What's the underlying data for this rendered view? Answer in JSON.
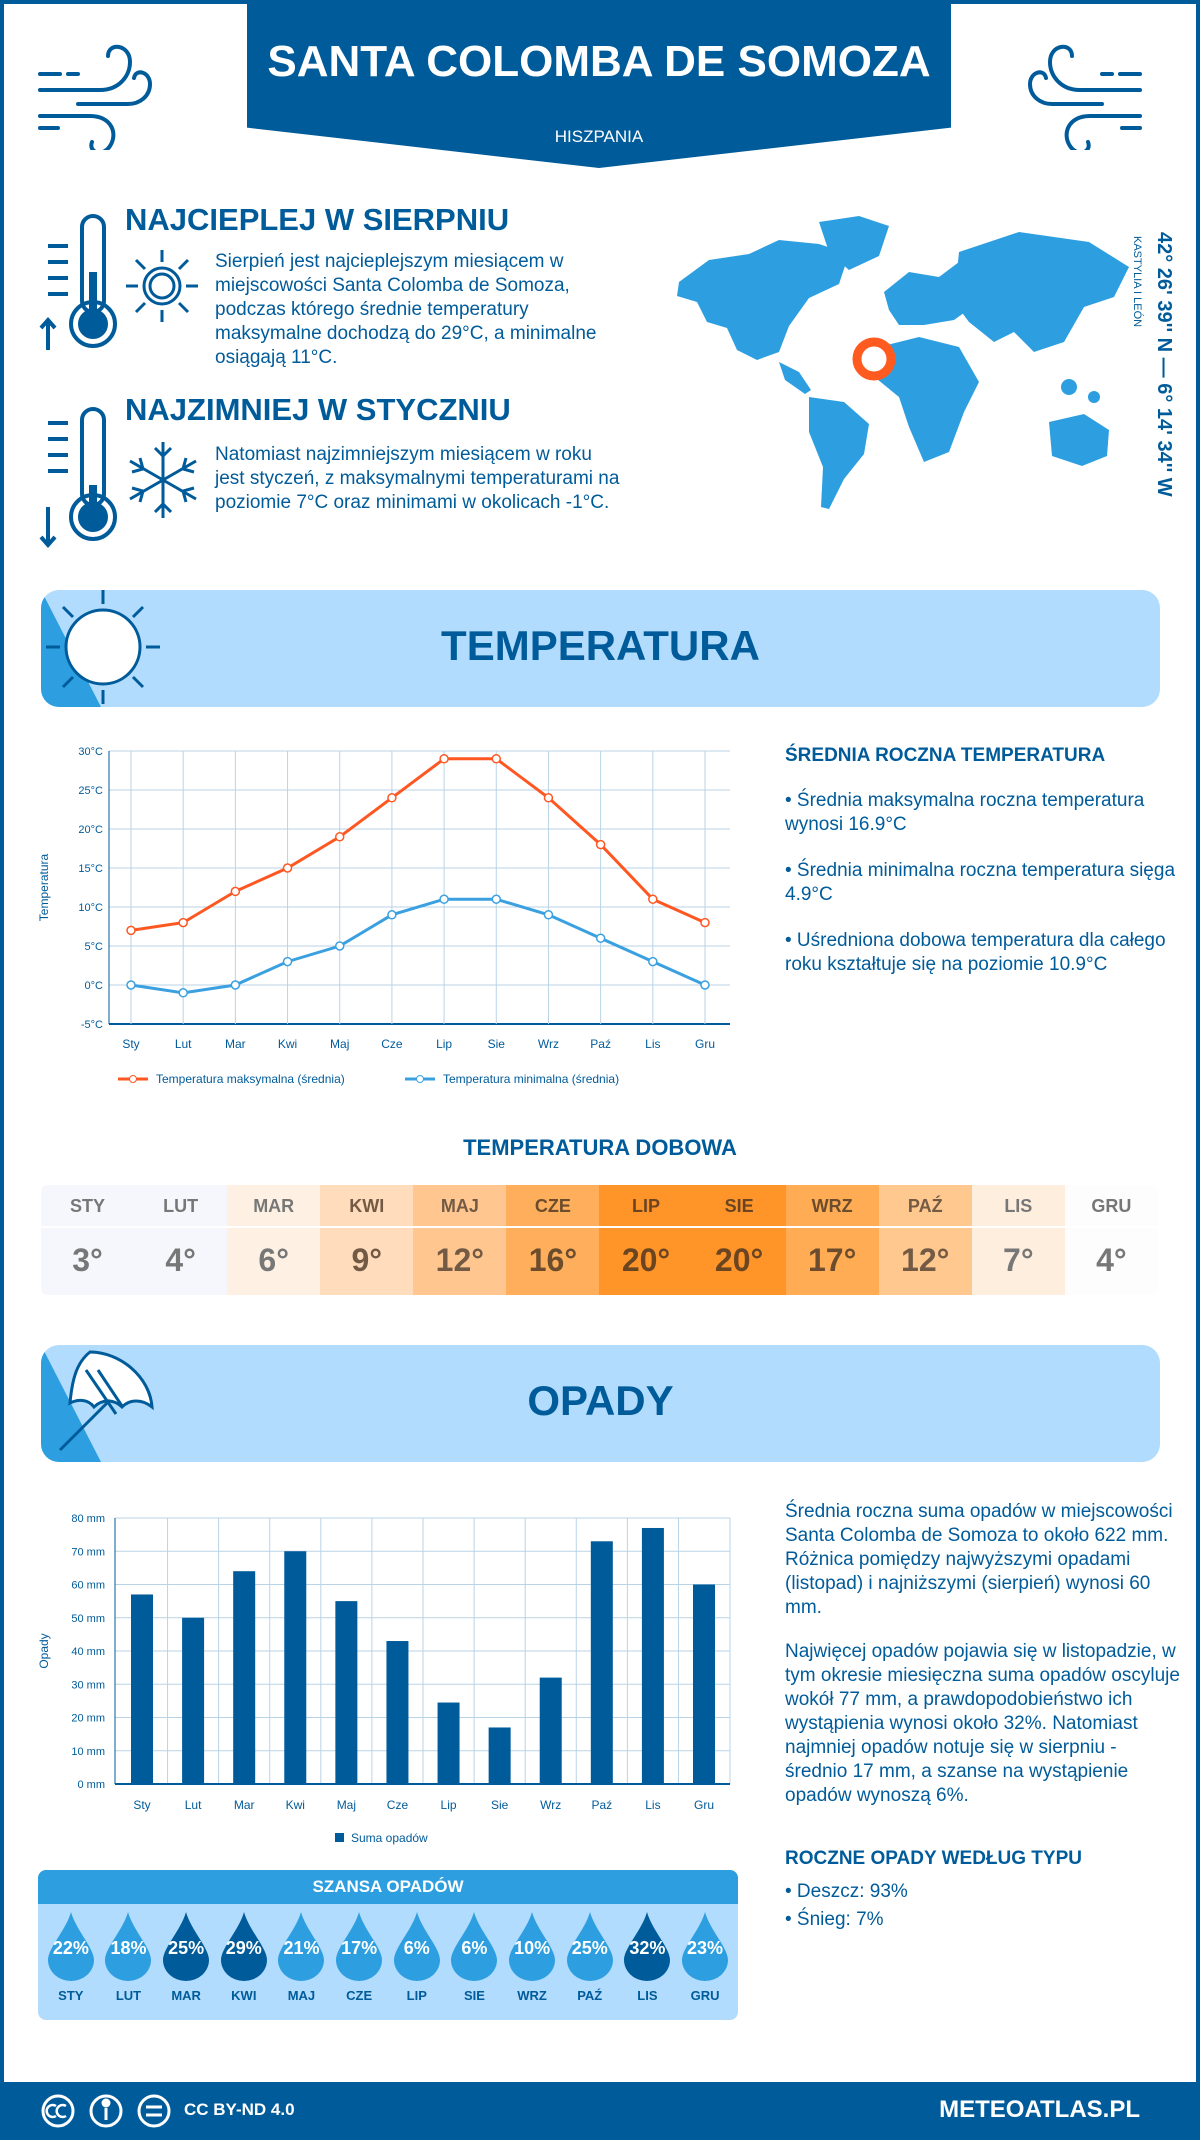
{
  "header": {
    "title": "SANTA COLOMBA DE SOMOZA",
    "country": "HISZPANIA"
  },
  "warmest": {
    "heading": "NAJCIEPLEJ W SIERPNIU",
    "text": "Sierpień jest najcieplejszym miesiącem w miejscowości Santa Colomba de Somoza, podczas którego średnie temperatury maksymalne dochodzą do 29°C, a minimalne osiągają 11°C."
  },
  "coldest": {
    "heading": "NAJZIMNIEJ W STYCZNIU",
    "text": "Natomiast najzimniejszym miesiącem w roku jest styczeń, z maksymalnymi temperaturami na poziomie 7°C oraz minimami w okolicach -1°C."
  },
  "location": {
    "coords": "42° 26' 39'' N — 6° 14' 34'' W",
    "region": "KASTYLIA I LEÓN"
  },
  "temperature_section": {
    "title": "TEMPERATURA"
  },
  "temperature_summary": {
    "heading": "ŚREDNIA ROCZNA TEMPERATURA",
    "bullets": [
      "• Średnia maksymalna roczna temperatura wynosi 16.9°C",
      "• Średnia minimalna roczna temperatura sięga 4.9°C",
      "• Uśredniona dobowa temperatura dla całego roku kształtuje się na poziomie 10.9°C"
    ]
  },
  "daily": {
    "heading": "TEMPERATURA DOBOWA",
    "items": [
      {
        "m": "STY",
        "v": "3°",
        "bg": "#f6f7fd",
        "fg": "#777777"
      },
      {
        "m": "LUT",
        "v": "4°",
        "bg": "#f6f7fd",
        "fg": "#777777"
      },
      {
        "m": "MAR",
        "v": "6°",
        "bg": "#fef1e4",
        "fg": "#777777"
      },
      {
        "m": "KWI",
        "v": "9°",
        "bg": "#ffdcbb",
        "fg": "#735a45"
      },
      {
        "m": "MAJ",
        "v": "12°",
        "bg": "#ffc78f",
        "fg": "#735a45"
      },
      {
        "m": "CZE",
        "v": "16°",
        "bg": "#ffae5c",
        "fg": "#6b4c2c"
      },
      {
        "m": "LIP",
        "v": "20°",
        "bg": "#ff9529",
        "fg": "#6b4522"
      },
      {
        "m": "SIE",
        "v": "20°",
        "bg": "#ff9529",
        "fg": "#6b4522"
      },
      {
        "m": "WRZ",
        "v": "17°",
        "bg": "#ffac55",
        "fg": "#6b4c2c"
      },
      {
        "m": "PAŹ",
        "v": "12°",
        "bg": "#ffc88f",
        "fg": "#735a45"
      },
      {
        "m": "LIS",
        "v": "7°",
        "bg": "#feeedd",
        "fg": "#777777"
      },
      {
        "m": "GRU",
        "v": "4°",
        "bg": "#fdfdfd",
        "fg": "#777777"
      }
    ]
  },
  "precip_section": {
    "title": "OPADY"
  },
  "precip_summary": {
    "p1": "Średnia roczna suma opadów w miejscowości Santa Colomba de Somoza to około 622 mm. Różnica pomiędzy najwyższymi opadami (listopad) i najniższymi (sierpień) wynosi 60 mm.",
    "p2": "Najwięcej opadów pojawia się w listopadzie, w tym okresie miesięczna suma opadów oscyluje wokół 77 mm, a prawdopodobieństwo ich wystąpienia wynosi około 32%. Natomiast najmniej opadów notuje się w sierpniu - średnio 17 mm, a szanse na wystąpienie opadów wynoszą 6%.",
    "type_heading": "ROCZNE OPADY WEDŁUG TYPU",
    "types": [
      "• Deszcz: 93%",
      "• Śnieg: 7%"
    ]
  },
  "chance": {
    "heading": "SZANSA OPADÓW",
    "items": [
      {
        "m": "STY",
        "v": "22%",
        "shade": "light"
      },
      {
        "m": "LUT",
        "v": "18%",
        "shade": "light"
      },
      {
        "m": "MAR",
        "v": "25%",
        "shade": "dark"
      },
      {
        "m": "KWI",
        "v": "29%",
        "shade": "dark"
      },
      {
        "m": "MAJ",
        "v": "21%",
        "shade": "light"
      },
      {
        "m": "CZE",
        "v": "17%",
        "shade": "light"
      },
      {
        "m": "LIP",
        "v": "6%",
        "shade": "light"
      },
      {
        "m": "SIE",
        "v": "6%",
        "shade": "light"
      },
      {
        "m": "WRZ",
        "v": "10%",
        "shade": "light"
      },
      {
        "m": "PAŹ",
        "v": "25%",
        "shade": "light"
      },
      {
        "m": "LIS",
        "v": "32%",
        "shade": "dark"
      },
      {
        "m": "GRU",
        "v": "23%",
        "shade": "light"
      }
    ]
  },
  "footer": {
    "license": "CC BY-ND 4.0",
    "site": "METEOATLAS.PL"
  },
  "colors": {
    "dark_blue": "#005b9a",
    "light_blue": "#2d9fe0",
    "pale_blue": "#b2dcfd",
    "max_line": "#ff5722",
    "min_line": "#3aa0e0",
    "marker": "#ff5a1f"
  },
  "chart_data": [
    {
      "type": "line",
      "categories": [
        "Sty",
        "Lut",
        "Mar",
        "Kwi",
        "Maj",
        "Cze",
        "Lip",
        "Sie",
        "Wrz",
        "Paź",
        "Lis",
        "Gru"
      ],
      "ylabel": "Temperatura",
      "ylim": [
        -5,
        30
      ],
      "yticks": [
        "-5°C",
        "0°C",
        "5°C",
        "10°C",
        "15°C",
        "20°C",
        "25°C",
        "30°C"
      ],
      "grid": true,
      "legend": "bottom",
      "series": [
        {
          "name": "Temperatura maksymalna (średnia)",
          "color": "#ff5722",
          "values": [
            7,
            8,
            12,
            15,
            19,
            24,
            29,
            29,
            24,
            18,
            11,
            8
          ]
        },
        {
          "name": "Temperatura minimalna (średnia)",
          "color": "#3aa0e0",
          "values": [
            0,
            -1,
            0,
            3,
            5,
            9,
            11,
            11,
            9,
            6,
            3,
            0
          ]
        }
      ]
    },
    {
      "type": "bar",
      "categories": [
        "Sty",
        "Lut",
        "Mar",
        "Kwi",
        "Maj",
        "Cze",
        "Lip",
        "Sie",
        "Wrz",
        "Paź",
        "Lis",
        "Gru"
      ],
      "ylabel": "Opady",
      "ylim": [
        0,
        80
      ],
      "yticks": [
        "0 mm",
        "10 mm",
        "20 mm",
        "30 mm",
        "40 mm",
        "50 mm",
        "60 mm",
        "70 mm",
        "80 mm"
      ],
      "grid": true,
      "legend": "bottom",
      "series": [
        {
          "name": "Suma opadów",
          "color": "#005b9a",
          "values": [
            57,
            50,
            64,
            70,
            55,
            43,
            24.5,
            17,
            32,
            73,
            77,
            60
          ]
        }
      ]
    }
  ]
}
